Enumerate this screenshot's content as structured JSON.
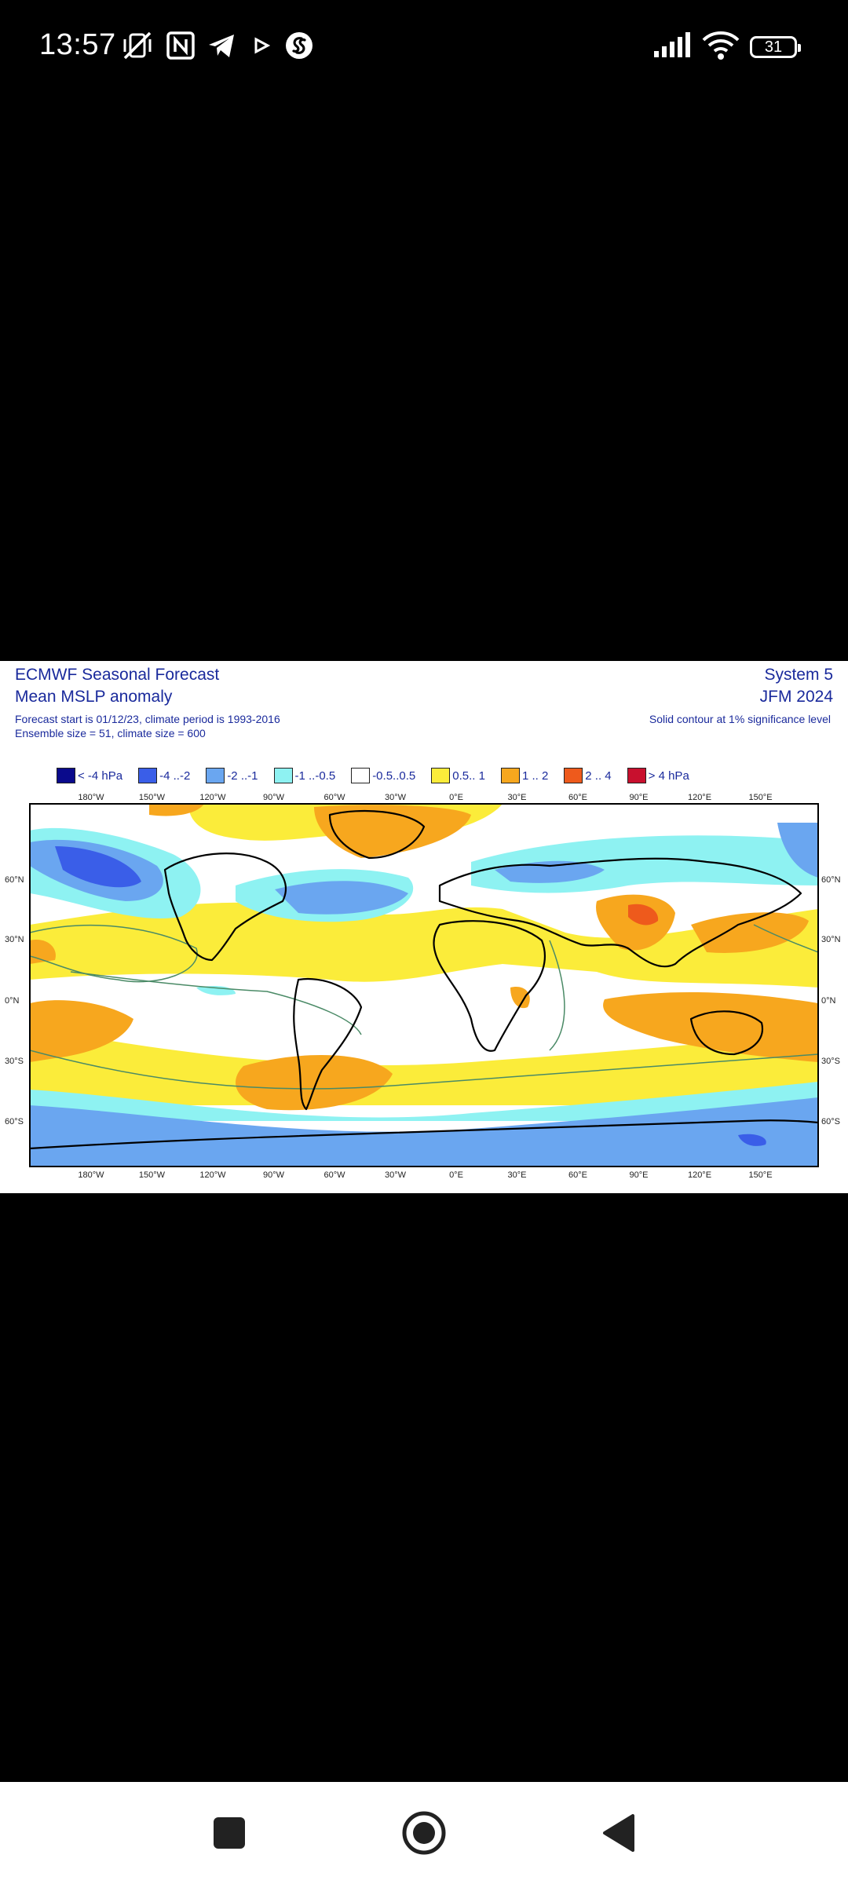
{
  "status_bar": {
    "time": "13:57",
    "left_icons": [
      "vibrate-off-icon",
      "nfc-icon",
      "telegram-icon",
      "play-icon",
      "shazam-icon"
    ],
    "right_icons": [
      "signal-icon",
      "wifi-icon"
    ],
    "battery": "31"
  },
  "figure": {
    "title": "ECMWF Seasonal Forecast",
    "subtitle": "Mean MSLP anomaly",
    "forecast_info": "Forecast start is 01/12/23, climate period is 1993-2016",
    "ensemble_info": "Ensemble size = 51, climate size = 600",
    "system": "System 5",
    "period": "JFM 2024",
    "significance_note": "Solid contour at 1% significance level",
    "legend": [
      {
        "label": "< -4 hPa",
        "color": "#0a0a8c"
      },
      {
        "label": "-4 ..-2",
        "color": "#3a5ee8"
      },
      {
        "label": "-2 ..-1",
        "color": "#6aa6f0"
      },
      {
        "label": "-1 ..-0.5",
        "color": "#8ef2f2"
      },
      {
        "label": "-0.5..0.5",
        "color": "#ffffff"
      },
      {
        "label": "0.5.. 1",
        "color": "#fbec3a"
      },
      {
        "label": "1 .. 2",
        "color": "#f7a71e"
      },
      {
        "label": "2 .. 4",
        "color": "#ee5a1c"
      },
      {
        "label": "> 4 hPa",
        "color": "#c8102e"
      }
    ],
    "lon_labels": [
      "180°W",
      "150°W",
      "120°W",
      "90°W",
      "60°W",
      "30°W",
      "0°E",
      "30°E",
      "60°E",
      "90°E",
      "120°E",
      "150°E"
    ],
    "lat_labels_left": [
      "60°N",
      "30°N",
      "0°N",
      "30°S",
      "60°S"
    ],
    "lat_labels_right": [
      "60°N",
      "30°N",
      "0°N",
      "30°S",
      "60°S"
    ]
  },
  "navigation": {
    "recents": "recents-square-icon",
    "home": "home-circle-icon",
    "back": "back-triangle-icon"
  }
}
